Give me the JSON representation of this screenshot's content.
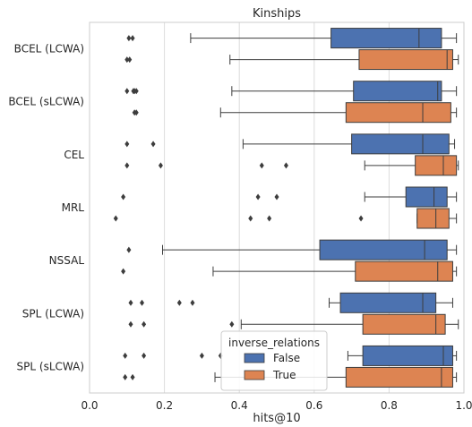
{
  "chart_data": {
    "type": "boxplot",
    "title": "Kinships",
    "xlabel": "hits@10",
    "ylabel": "",
    "xlim": [
      0.0,
      1.0
    ],
    "xticks": [
      "0.0",
      "0.2",
      "0.4",
      "0.6",
      "0.8",
      "1.0"
    ],
    "grid": "vertical",
    "orientation": "horizontal",
    "categories": [
      "BCEL (LCWA)",
      "BCEL (sLCWA)",
      "CEL",
      "MRL",
      "NSSAL",
      "SPL (LCWA)",
      "SPL (sLCWA)"
    ],
    "legend": {
      "title": "inverse_relations",
      "placement": "lower-center",
      "entries": [
        {
          "label": "False",
          "color": "#4C72B0"
        },
        {
          "label": "True",
          "color": "#DD8452"
        }
      ]
    },
    "series": [
      {
        "name": "False",
        "color": "#4C72B0",
        "boxes": [
          {
            "whislo": 0.27,
            "q1": 0.645,
            "med": 0.88,
            "q3": 0.94,
            "whishi": 0.98,
            "fliers": [
              0.105,
              0.115
            ]
          },
          {
            "whislo": 0.38,
            "q1": 0.705,
            "med": 0.93,
            "q3": 0.94,
            "whishi": 0.98,
            "fliers": [
              0.1,
              0.125,
              0.117,
              0.12
            ]
          },
          {
            "whislo": 0.41,
            "q1": 0.7,
            "med": 0.89,
            "q3": 0.96,
            "whishi": 0.975,
            "fliers": [
              0.1,
              0.17
            ]
          },
          {
            "whislo": 0.735,
            "q1": 0.845,
            "med": 0.92,
            "q3": 0.955,
            "whishi": 0.98,
            "fliers": [
              0.09,
              0.45,
              0.5
            ]
          },
          {
            "whislo": 0.195,
            "q1": 0.615,
            "med": 0.895,
            "q3": 0.955,
            "whishi": 0.98,
            "fliers": [
              0.105
            ]
          },
          {
            "whislo": 0.64,
            "q1": 0.67,
            "med": 0.89,
            "q3": 0.925,
            "whishi": 0.97,
            "fliers": [
              0.11,
              0.14,
              0.24,
              0.275
            ]
          },
          {
            "whislo": 0.69,
            "q1": 0.73,
            "med": 0.945,
            "q3": 0.97,
            "whishi": 0.98,
            "fliers": [
              0.095,
              0.145,
              0.3,
              0.35
            ]
          }
        ]
      },
      {
        "name": "True",
        "color": "#DD8452",
        "boxes": [
          {
            "whislo": 0.375,
            "q1": 0.72,
            "med": 0.955,
            "q3": 0.97,
            "whishi": 0.985,
            "fliers": [
              0.1,
              0.107
            ]
          },
          {
            "whislo": 0.35,
            "q1": 0.685,
            "med": 0.89,
            "q3": 0.965,
            "whishi": 0.98,
            "fliers": [
              0.12,
              0.125
            ]
          },
          {
            "whislo": 0.735,
            "q1": 0.87,
            "med": 0.945,
            "q3": 0.98,
            "whishi": 0.985,
            "fliers": [
              0.1,
              0.19,
              0.46,
              0.525
            ]
          },
          {
            "whislo": 0.875,
            "q1": 0.875,
            "med": 0.925,
            "q3": 0.96,
            "whishi": 0.98,
            "fliers": [
              0.07,
              0.43,
              0.48,
              0.725
            ]
          },
          {
            "whislo": 0.33,
            "q1": 0.71,
            "med": 0.93,
            "q3": 0.97,
            "whishi": 0.98,
            "fliers": [
              0.09
            ]
          },
          {
            "whislo": 0.405,
            "q1": 0.73,
            "med": 0.925,
            "q3": 0.95,
            "whishi": 0.985,
            "fliers": [
              0.11,
              0.145,
              0.38
            ]
          },
          {
            "whislo": 0.335,
            "q1": 0.685,
            "med": 0.94,
            "q3": 0.97,
            "whishi": 0.98,
            "fliers": [
              0.095,
              0.115
            ]
          }
        ]
      }
    ]
  }
}
